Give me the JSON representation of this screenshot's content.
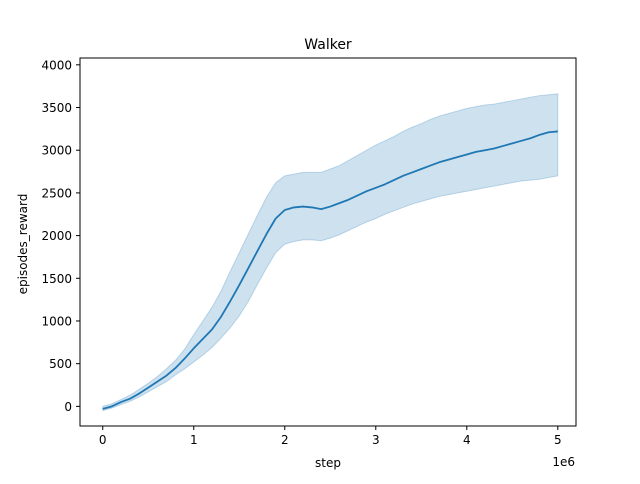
{
  "chart_data": {
    "type": "line",
    "title": "Walker",
    "xlabel": "step",
    "ylabel": "episodes_reward",
    "x_offset_label": "1e6",
    "xlim": [
      -0.25,
      5.2
    ],
    "ylim": [
      -230,
      4080
    ],
    "x_ticks": [
      0,
      1,
      2,
      3,
      4,
      5
    ],
    "x_tick_labels": [
      "0",
      "1",
      "2",
      "3",
      "4",
      "5"
    ],
    "y_ticks": [
      0,
      500,
      1000,
      1500,
      2000,
      2500,
      3000,
      3500,
      4000
    ],
    "y_tick_labels": [
      "0",
      "500",
      "1000",
      "1500",
      "2000",
      "2500",
      "3000",
      "3500",
      "4000"
    ],
    "grid": false,
    "legend": "none",
    "colors": {
      "line": "#1f77b4",
      "band": "#1f77b4"
    },
    "series": [
      {
        "x": [
          0,
          0.1,
          0.2,
          0.3,
          0.4,
          0.5,
          0.6,
          0.7,
          0.8,
          0.9,
          1.0,
          1.1,
          1.2,
          1.3,
          1.4,
          1.5,
          1.6,
          1.7,
          1.8,
          1.9,
          2.0,
          2.1,
          2.2,
          2.3,
          2.4,
          2.5,
          2.6,
          2.7,
          2.8,
          2.9,
          3.0,
          3.1,
          3.2,
          3.3,
          3.4,
          3.5,
          3.6,
          3.7,
          3.8,
          3.9,
          4.0,
          4.1,
          4.2,
          4.3,
          4.4,
          4.5,
          4.6,
          4.7,
          4.8,
          4.9,
          5.0
        ],
        "y": [
          -30,
          0,
          50,
          90,
          150,
          220,
          290,
          360,
          450,
          560,
          680,
          790,
          900,
          1050,
          1230,
          1420,
          1620,
          1820,
          2020,
          2200,
          2300,
          2330,
          2340,
          2330,
          2310,
          2340,
          2380,
          2420,
          2470,
          2520,
          2560,
          2600,
          2650,
          2700,
          2740,
          2780,
          2820,
          2860,
          2890,
          2920,
          2950,
          2980,
          3000,
          3020,
          3050,
          3080,
          3110,
          3140,
          3180,
          3210,
          3220
        ],
        "lower": [
          -50,
          -20,
          20,
          60,
          110,
          170,
          230,
          290,
          370,
          440,
          520,
          600,
          690,
          800,
          920,
          1060,
          1230,
          1430,
          1620,
          1800,
          1900,
          1930,
          1950,
          1950,
          1940,
          1970,
          2010,
          2060,
          2110,
          2160,
          2200,
          2250,
          2290,
          2330,
          2370,
          2400,
          2430,
          2460,
          2480,
          2500,
          2520,
          2540,
          2560,
          2580,
          2600,
          2620,
          2640,
          2650,
          2660,
          2680,
          2700
        ],
        "upper": [
          0,
          30,
          80,
          130,
          200,
          270,
          350,
          440,
          540,
          670,
          840,
          1000,
          1160,
          1350,
          1580,
          1800,
          2020,
          2240,
          2450,
          2620,
          2700,
          2720,
          2740,
          2740,
          2740,
          2780,
          2820,
          2880,
          2940,
          3000,
          3060,
          3110,
          3160,
          3220,
          3270,
          3310,
          3360,
          3400,
          3430,
          3460,
          3490,
          3510,
          3530,
          3540,
          3560,
          3580,
          3600,
          3620,
          3640,
          3650,
          3660
        ]
      }
    ]
  }
}
